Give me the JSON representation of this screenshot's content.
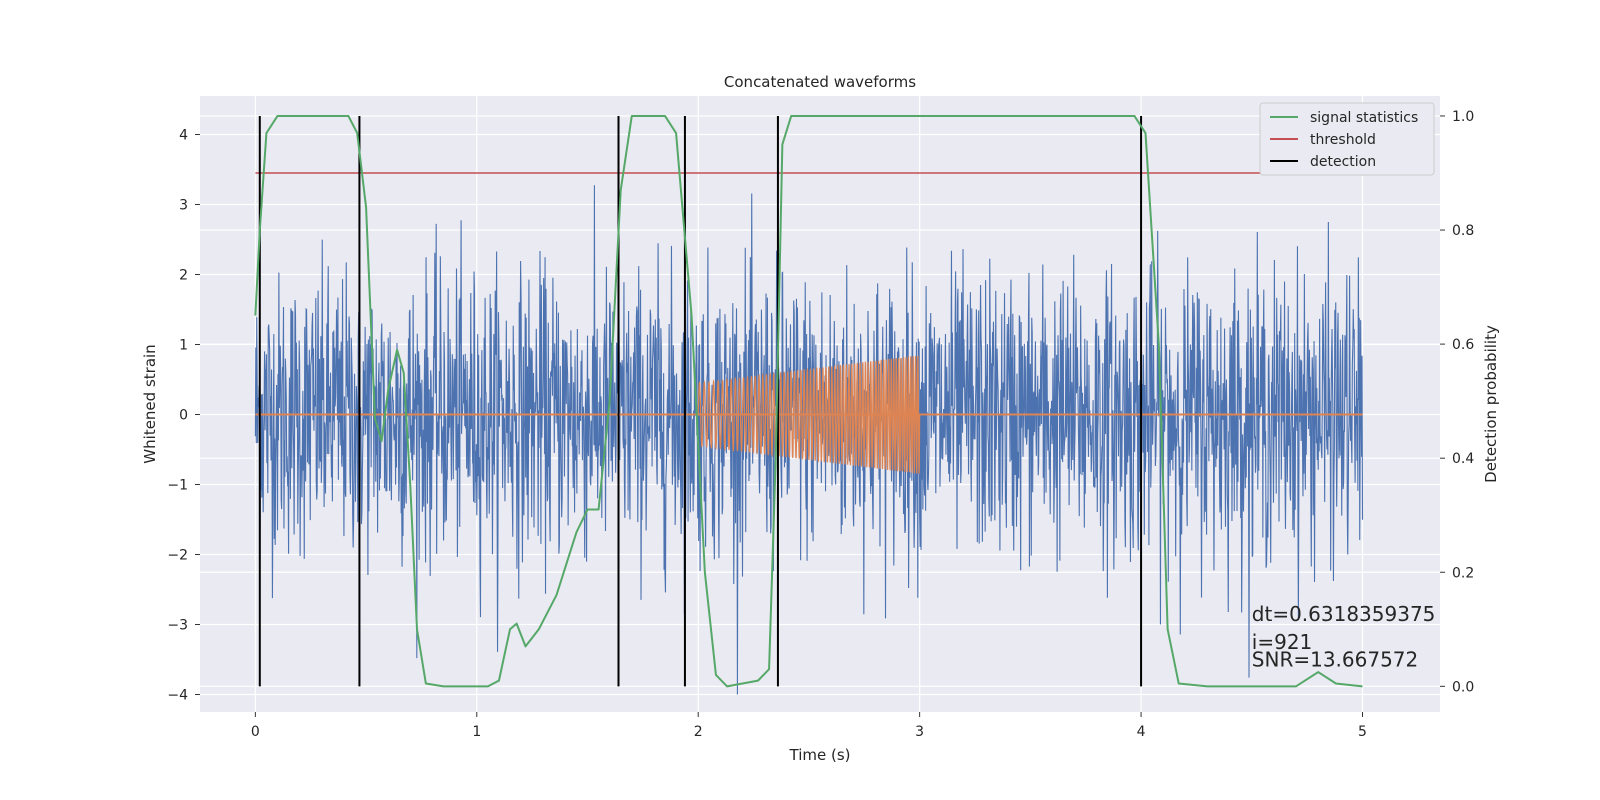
{
  "chart_data": {
    "type": "line",
    "title": "Concatenated waveforms",
    "xlabel": "Time (s)",
    "ylabel": "Whitened strain",
    "ylabel_right": "Detection probability",
    "xlim": [
      -0.25,
      5.35
    ],
    "ylim": [
      -4.25,
      4.55
    ],
    "ylim_right": [
      -0.045,
      1.035
    ],
    "x_ticks": [
      0,
      1,
      2,
      3,
      4,
      5
    ],
    "y_ticks": [
      -4,
      -3,
      -2,
      -1,
      0,
      1,
      2,
      3,
      4
    ],
    "y_ticks_right": [
      0.0,
      0.2,
      0.4,
      0.6,
      0.8,
      1.0
    ],
    "grid": true,
    "legend_position": "top-right",
    "legend": [
      "signal statistics",
      "threshold",
      "detection"
    ],
    "noise": {
      "color": "#4c72b0",
      "x_range": [
        0,
        5
      ],
      "typical_amplitude": 1.0,
      "peak_amplitude": 4.0
    },
    "injected_signal": {
      "color": "#dd8452",
      "x_range": [
        2.0,
        3.0
      ],
      "amplitude_start": 0.45,
      "amplitude_end": 0.85,
      "baseline": 0
    },
    "series": [
      {
        "name": "signal statistics",
        "color": "#55a868",
        "axis": "right",
        "points": [
          [
            0.0,
            0.65
          ],
          [
            0.02,
            0.8
          ],
          [
            0.05,
            0.97
          ],
          [
            0.1,
            1.0
          ],
          [
            0.42,
            1.0
          ],
          [
            0.46,
            0.97
          ],
          [
            0.5,
            0.84
          ],
          [
            0.54,
            0.47
          ],
          [
            0.57,
            0.43
          ],
          [
            0.6,
            0.52
          ],
          [
            0.64,
            0.59
          ],
          [
            0.67,
            0.55
          ],
          [
            0.7,
            0.35
          ],
          [
            0.73,
            0.1
          ],
          [
            0.77,
            0.005
          ],
          [
            0.85,
            0.0
          ],
          [
            1.05,
            0.0
          ],
          [
            1.1,
            0.01
          ],
          [
            1.15,
            0.1
          ],
          [
            1.18,
            0.11
          ],
          [
            1.22,
            0.07
          ],
          [
            1.28,
            0.1
          ],
          [
            1.36,
            0.16
          ],
          [
            1.45,
            0.27
          ],
          [
            1.5,
            0.31
          ],
          [
            1.55,
            0.31
          ],
          [
            1.6,
            0.5
          ],
          [
            1.65,
            0.87
          ],
          [
            1.7,
            1.0
          ],
          [
            1.85,
            1.0
          ],
          [
            1.9,
            0.97
          ],
          [
            1.97,
            0.65
          ],
          [
            2.03,
            0.2
          ],
          [
            2.08,
            0.02
          ],
          [
            2.13,
            0.0
          ],
          [
            2.27,
            0.01
          ],
          [
            2.32,
            0.03
          ],
          [
            2.35,
            0.4
          ],
          [
            2.38,
            0.95
          ],
          [
            2.42,
            1.0
          ],
          [
            3.97,
            1.0
          ],
          [
            4.02,
            0.97
          ],
          [
            4.08,
            0.6
          ],
          [
            4.12,
            0.1
          ],
          [
            4.17,
            0.005
          ],
          [
            4.3,
            0.0
          ],
          [
            4.7,
            0.0
          ],
          [
            4.8,
            0.025
          ],
          [
            4.88,
            0.005
          ],
          [
            5.0,
            0.0
          ]
        ]
      },
      {
        "name": "threshold",
        "color": "#c44e52",
        "axis": "right",
        "x": [
          0.0,
          5.1
        ],
        "values": [
          0.9,
          0.9
        ]
      },
      {
        "name": "detection",
        "color": "#000000",
        "axis": "right",
        "x": [
          0.02,
          0.47,
          1.64,
          1.94,
          2.36,
          4.0
        ],
        "ymin": 0.0,
        "ymax": 1.0
      }
    ],
    "annotations": [
      {
        "text": "dt=0.6318359375",
        "x": 4.5,
        "y": -2.95
      },
      {
        "text": " i=921",
        "x": 4.5,
        "y": -3.35
      },
      {
        "text": "SNR=13.667572",
        "x": 4.5,
        "y": -3.6
      }
    ]
  }
}
